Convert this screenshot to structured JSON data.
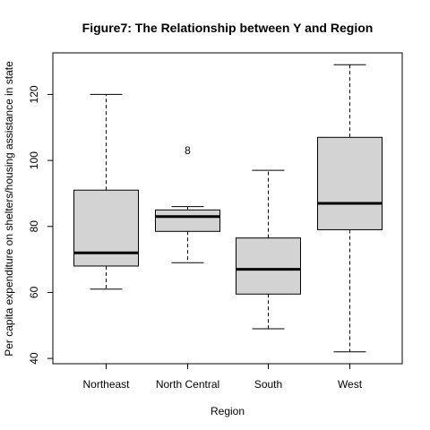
{
  "chart_data": {
    "type": "boxplot",
    "title": "Figure7: The Relationship between Y and Region",
    "xlabel": "Region",
    "ylabel": "Per capita expenditure on shelters/housing assistance in state",
    "categories": [
      "Northeast",
      "North Central",
      "South",
      "West"
    ],
    "boxes": [
      {
        "category": "Northeast",
        "whisker_low": 61,
        "q1": 68,
        "median": 72,
        "q3": 91,
        "whisker_high": 120
      },
      {
        "category": "North Central",
        "whisker_low": 69,
        "q1": 78.5,
        "median": 83,
        "q3": 85,
        "whisker_high": 86,
        "outliers": [
          {
            "label": "8",
            "value": 103
          }
        ]
      },
      {
        "category": "South",
        "whisker_low": 49,
        "q1": 59.5,
        "median": 67,
        "q3": 76.5,
        "whisker_high": 97
      },
      {
        "category": "West",
        "whisker_low": 42,
        "q1": 79,
        "median": 87,
        "q3": 107,
        "whisker_high": 129
      }
    ],
    "y_ticks": [
      "40",
      "60",
      "80",
      "100",
      "120"
    ],
    "ylim": [
      38.4,
      132.6
    ],
    "box_fill": "#d3d3d3",
    "grid": false
  }
}
